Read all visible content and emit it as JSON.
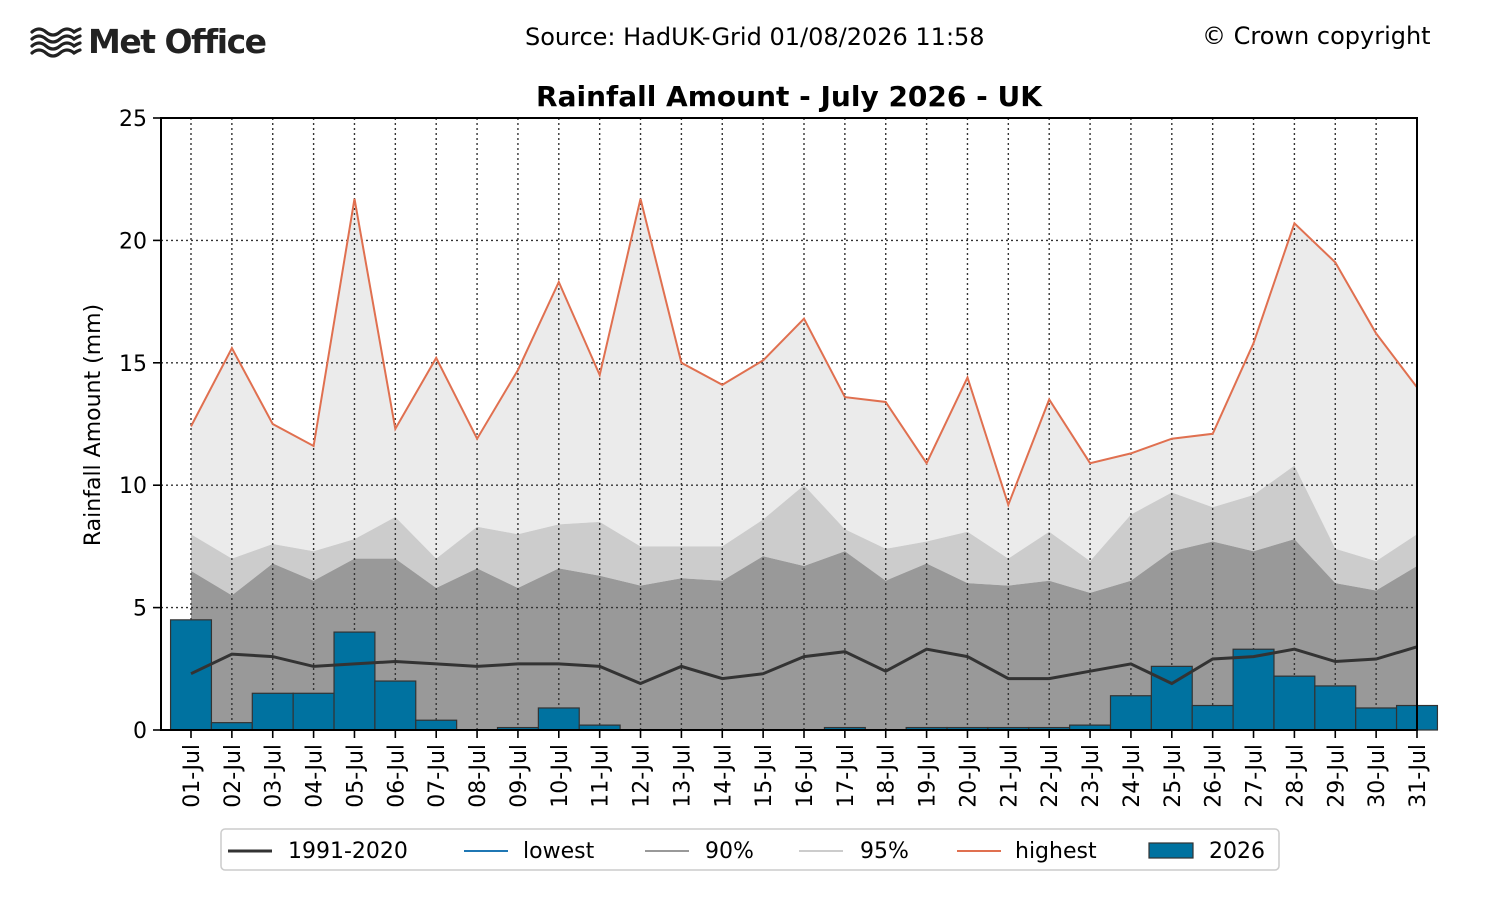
{
  "header": {
    "logo_text": "Met Office",
    "source": "Source: HadUK-Grid 01/08/2026 11:58",
    "copyright": "© Crown copyright"
  },
  "chart_data": {
    "type": "area",
    "title": "Rainfall Amount - July 2026 - UK",
    "xlabel": "",
    "ylabel": "Rainfall Amount (mm)",
    "ylim": [
      0,
      25
    ],
    "yticks": [
      0,
      5,
      10,
      15,
      20,
      25
    ],
    "grid": true,
    "legend_placement": "bottom-center",
    "categories": [
      "01-Jul",
      "02-Jul",
      "03-Jul",
      "04-Jul",
      "05-Jul",
      "06-Jul",
      "07-Jul",
      "08-Jul",
      "09-Jul",
      "10-Jul",
      "11-Jul",
      "12-Jul",
      "13-Jul",
      "14-Jul",
      "15-Jul",
      "16-Jul",
      "17-Jul",
      "18-Jul",
      "19-Jul",
      "20-Jul",
      "21-Jul",
      "22-Jul",
      "23-Jul",
      "24-Jul",
      "25-Jul",
      "26-Jul",
      "27-Jul",
      "28-Jul",
      "29-Jul",
      "30-Jul",
      "31-Jul"
    ],
    "series": [
      {
        "name": "1991-2020",
        "kind": "line",
        "color": "#333333",
        "values": [
          2.3,
          3.1,
          3.0,
          2.6,
          2.7,
          2.8,
          2.7,
          2.6,
          2.7,
          2.7,
          2.6,
          1.9,
          2.6,
          2.1,
          2.3,
          3.0,
          3.2,
          2.4,
          3.3,
          3.0,
          2.1,
          2.1,
          2.4,
          2.7,
          1.9,
          2.9,
          3.0,
          3.3,
          2.8,
          2.9,
          3.4
        ]
      },
      {
        "name": "lowest",
        "kind": "line",
        "color": "#1f77b4",
        "values": [
          0,
          0,
          0,
          0,
          0,
          0,
          0,
          0,
          0,
          0,
          0,
          0,
          0,
          0,
          0,
          0,
          0,
          0,
          0,
          0,
          0,
          0,
          0,
          0,
          0,
          0,
          0,
          0,
          0,
          0,
          0
        ]
      },
      {
        "name": "90%",
        "kind": "area",
        "color": "#999999",
        "values": [
          6.5,
          5.5,
          6.8,
          6.1,
          7.0,
          7.0,
          5.8,
          6.6,
          5.8,
          6.6,
          6.3,
          5.9,
          6.2,
          6.1,
          7.1,
          6.7,
          7.3,
          6.1,
          6.8,
          6.0,
          5.9,
          6.1,
          5.6,
          6.1,
          7.3,
          7.7,
          7.3,
          7.8,
          6.0,
          5.7,
          6.7
        ]
      },
      {
        "name": "95%",
        "kind": "area",
        "color": "#cccccc",
        "values": [
          8.0,
          7.0,
          7.6,
          7.3,
          7.8,
          8.7,
          7.0,
          8.3,
          8.0,
          8.4,
          8.5,
          7.5,
          7.5,
          7.5,
          8.6,
          10.0,
          8.2,
          7.4,
          7.7,
          8.1,
          7.0,
          8.1,
          6.9,
          8.8,
          9.7,
          9.1,
          9.6,
          10.8,
          7.4,
          6.9,
          8.0
        ]
      },
      {
        "name": "highest",
        "kind": "line",
        "color": "#e07050",
        "values": [
          12.4,
          15.6,
          12.5,
          11.6,
          21.7,
          12.3,
          15.2,
          11.9,
          14.7,
          18.3,
          14.5,
          21.7,
          15.0,
          14.1,
          15.1,
          16.8,
          13.6,
          13.4,
          10.9,
          14.4,
          9.2,
          13.5,
          10.9,
          11.3,
          11.9,
          12.1,
          15.8,
          20.7,
          19.1,
          16.2,
          14.0
        ]
      },
      {
        "name": "2026",
        "kind": "bar",
        "color": "#0072a0",
        "values": [
          4.5,
          0.3,
          1.5,
          1.5,
          4.0,
          2.0,
          0.4,
          0.0,
          0.1,
          0.9,
          0.2,
          0.0,
          0.0,
          0.0,
          0.0,
          0.0,
          0.1,
          0.0,
          0.1,
          0.1,
          0.1,
          0.1,
          0.2,
          1.4,
          2.6,
          1.0,
          3.3,
          2.2,
          1.8,
          0.9,
          1.0
        ]
      }
    ]
  }
}
